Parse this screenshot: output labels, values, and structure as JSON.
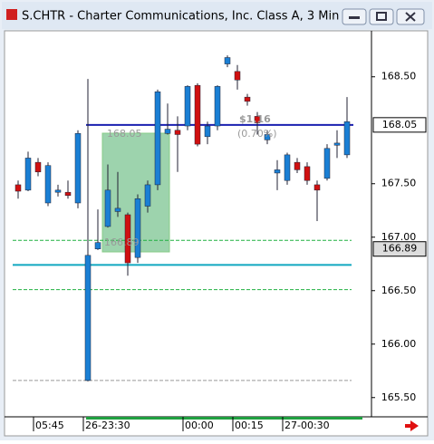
{
  "chart_data": {
    "type": "candlestick",
    "title": "S.CHTR - Charter Communications, Inc. Class A, 3 Min",
    "categories": [
      null,
      null,
      "05:45",
      null,
      null,
      null,
      null,
      "26-23:30",
      null,
      null,
      null,
      null,
      null,
      null,
      null,
      null,
      null,
      "00:00",
      null,
      null,
      null,
      null,
      "00:15",
      null,
      null,
      null,
      null,
      "27-00:30",
      null,
      null,
      null,
      null,
      null,
      null
    ],
    "open": [
      167.49,
      167.44,
      167.7,
      167.32,
      167.42,
      167.42,
      167.32,
      165.66,
      166.89,
      167.1,
      167.24,
      167.21,
      166.81,
      167.29,
      167.49,
      167.97,
      168.0,
      168.04,
      168.42,
      167.94,
      168.04,
      168.62,
      168.55,
      168.31,
      168.13,
      167.91,
      167.6,
      167.53,
      167.7,
      167.66,
      167.49,
      167.55,
      167.86,
      167.77
    ],
    "high": [
      167.53,
      167.8,
      167.74,
      167.7,
      167.49,
      167.53,
      168.0,
      168.48,
      167.26,
      167.68,
      167.61,
      167.23,
      167.4,
      167.53,
      168.38,
      168.25,
      168.13,
      168.42,
      168.44,
      168.08,
      168.42,
      168.7,
      168.61,
      168.34,
      168.17,
      168.0,
      167.72,
      167.79,
      167.74,
      167.7,
      167.53,
      167.87,
      168.0,
      168.31
    ],
    "low": [
      167.36,
      167.43,
      167.57,
      167.29,
      167.38,
      167.36,
      167.27,
      165.65,
      166.88,
      167.09,
      167.19,
      166.64,
      166.76,
      167.23,
      167.44,
      167.96,
      167.61,
      168.0,
      167.85,
      167.87,
      168.0,
      168.59,
      168.38,
      168.23,
      167.96,
      167.87,
      167.44,
      167.49,
      167.6,
      167.49,
      167.15,
      167.53,
      167.74,
      167.74
    ],
    "close": [
      167.43,
      167.74,
      167.61,
      167.67,
      167.44,
      167.39,
      167.97,
      166.83,
      166.95,
      167.44,
      167.27,
      166.76,
      167.36,
      167.49,
      168.36,
      168.01,
      167.96,
      168.41,
      167.87,
      168.04,
      168.41,
      168.68,
      168.47,
      168.27,
      168.07,
      167.96,
      167.63,
      167.77,
      167.63,
      167.53,
      167.44,
      167.83,
      167.88,
      168.08
    ],
    "up_color": "#1a7fd4",
    "down_color": "#d01010",
    "ylim": [
      165.32,
      168.93
    ],
    "yticks": [
      {
        "value": 168.5,
        "label": "168.50"
      },
      {
        "value": 167.5,
        "label": "167.50"
      },
      {
        "value": 167,
        "label": "167.00"
      },
      {
        "value": 166.5,
        "label": "166.50"
      },
      {
        "value": 166,
        "label": "166.00"
      },
      {
        "value": 165.5,
        "label": "165.50"
      }
    ],
    "price_markers": [
      168.05,
      166.89
    ],
    "levels": [
      {
        "value": 168.05,
        "color": "#1a20b0"
      },
      {
        "value": 166.97,
        "color": "#20b040"
      },
      {
        "value": 166.74,
        "color": "#10a8c0"
      },
      {
        "value": 166.51,
        "color": "#20b040"
      },
      {
        "value": 165.66,
        "color": "#999999"
      }
    ],
    "annotations": [
      "168.05",
      "166.89",
      "$1.16",
      "(0.70%)"
    ]
  }
}
